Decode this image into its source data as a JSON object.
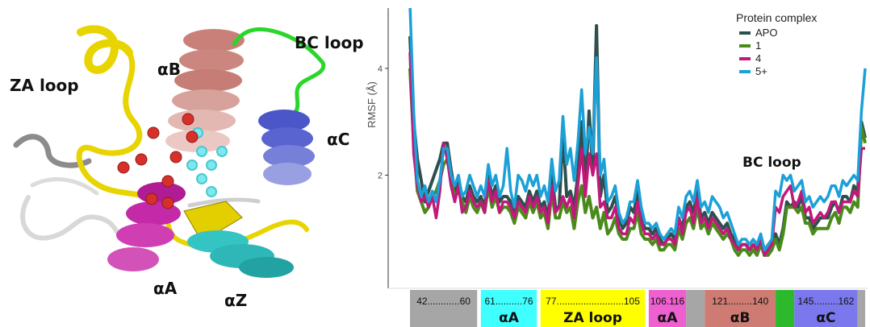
{
  "structure_labels": {
    "za_loop": "ZA loop",
    "alpha_b": "αB",
    "bc_loop": "BC loop",
    "alpha_c": "αC",
    "alpha_a": "αA",
    "alpha_z": "αZ"
  },
  "chart_data": {
    "type": "line",
    "ylabel": "RMSF (Å)",
    "yticks": [
      "2",
      "4"
    ],
    "ylim": [
      0.0,
      5.1
    ],
    "x": [
      42,
      43,
      44,
      45,
      46,
      47,
      48,
      49,
      50,
      51,
      52,
      53,
      54,
      55,
      56,
      57,
      58,
      59,
      60,
      61,
      62,
      63,
      64,
      65,
      66,
      67,
      68,
      69,
      70,
      71,
      72,
      73,
      74,
      75,
      76,
      77,
      78,
      79,
      80,
      81,
      82,
      83,
      84,
      85,
      86,
      87,
      88,
      89,
      90,
      91,
      92,
      93,
      94,
      95,
      96,
      97,
      98,
      99,
      100,
      101,
      102,
      103,
      104,
      105,
      106,
      107,
      108,
      109,
      110,
      111,
      112,
      113,
      114,
      115,
      116,
      117,
      118,
      119,
      120,
      121,
      122,
      123,
      124,
      125,
      126,
      127,
      128,
      129,
      130,
      131,
      132,
      133,
      134,
      135,
      136,
      137,
      138,
      139,
      140,
      141,
      142,
      143,
      144,
      145,
      146,
      147,
      148,
      149,
      150,
      151,
      152,
      153,
      154,
      155,
      156,
      157,
      158,
      159,
      160,
      161,
      162,
      163,
      164
    ],
    "xlim": [
      42,
      164
    ],
    "legend": {
      "title": "Protein complex",
      "position": "top-right"
    },
    "annotation": "BC loop",
    "series": [
      {
        "name": "APO",
        "color": "#2f4f4f",
        "width": 4,
        "values": [
          4.6,
          3.0,
          2.3,
          1.9,
          1.5,
          1.7,
          1.9,
          2.1,
          2.3,
          2.6,
          2.6,
          2.1,
          1.7,
          1.9,
          1.6,
          1.5,
          1.8,
          1.6,
          1.5,
          1.6,
          1.4,
          2.0,
          1.6,
          1.8,
          1.5,
          1.6,
          1.6,
          1.5,
          1.3,
          1.6,
          1.5,
          1.4,
          1.7,
          1.5,
          1.7,
          1.4,
          1.5,
          1.2,
          2.0,
          1.4,
          1.4,
          2.8,
          1.6,
          1.7,
          1.4,
          2.0,
          3.0,
          1.7,
          3.2,
          2.1,
          4.8,
          1.6,
          2.0,
          1.3,
          1.4,
          1.6,
          1.2,
          1.0,
          1.1,
          1.4,
          1.3,
          1.7,
          1.2,
          1.0,
          1.0,
          0.9,
          1.0,
          0.8,
          0.7,
          0.8,
          0.9,
          0.8,
          1.2,
          1.0,
          1.4,
          1.5,
          1.3,
          1.7,
          1.2,
          1.3,
          1.1,
          1.3,
          1.2,
          1.1,
          1.0,
          1.1,
          0.9,
          0.8,
          0.6,
          0.7,
          0.7,
          0.6,
          0.7,
          0.6,
          0.8,
          0.5,
          0.6,
          0.7,
          0.9,
          0.7,
          1.0,
          1.5,
          1.4,
          1.5,
          1.4,
          1.6,
          1.2,
          1.2,
          1.0,
          1.1,
          1.2,
          1.2,
          1.2,
          1.4,
          1.5,
          1.3,
          1.6,
          1.6,
          1.5,
          1.8,
          1.7,
          3.0,
          2.7
        ]
      },
      {
        "name": "1",
        "color": "#4a8a1a",
        "width": 4,
        "values": [
          4.0,
          2.6,
          1.7,
          1.5,
          1.3,
          1.4,
          1.6,
          1.7,
          1.9,
          2.2,
          2.3,
          1.9,
          1.6,
          1.7,
          1.5,
          1.3,
          1.6,
          1.4,
          1.3,
          1.5,
          1.3,
          1.8,
          1.4,
          1.6,
          1.3,
          1.4,
          1.4,
          1.3,
          1.1,
          1.4,
          1.3,
          1.2,
          1.5,
          1.3,
          1.5,
          1.2,
          1.3,
          1.0,
          1.7,
          1.2,
          1.2,
          1.5,
          1.3,
          1.4,
          1.0,
          1.5,
          1.8,
          1.3,
          1.6,
          1.2,
          1.4,
          1.0,
          1.3,
          0.9,
          1.0,
          1.2,
          0.9,
          0.8,
          0.8,
          1.0,
          1.0,
          1.3,
          0.9,
          0.8,
          0.8,
          0.7,
          0.8,
          0.6,
          0.6,
          0.7,
          0.7,
          0.6,
          1.0,
          0.8,
          1.1,
          1.2,
          1.0,
          1.4,
          1.0,
          1.1,
          0.9,
          1.1,
          1.0,
          0.9,
          0.8,
          0.9,
          0.8,
          0.6,
          0.5,
          0.6,
          0.6,
          0.5,
          0.6,
          0.5,
          0.7,
          0.5,
          0.5,
          0.6,
          0.8,
          0.6,
          0.9,
          1.4,
          1.4,
          1.4,
          1.3,
          1.4,
          1.1,
          1.1,
          0.9,
          1.0,
          1.0,
          1.0,
          1.0,
          1.2,
          1.3,
          1.1,
          1.4,
          1.4,
          1.3,
          1.5,
          1.4,
          2.9,
          2.6
        ]
      },
      {
        "name": "4",
        "color": "#c2187a",
        "width": 3.5,
        "values": [
          4.3,
          2.4,
          1.8,
          1.5,
          1.6,
          1.4,
          1.6,
          1.2,
          1.7,
          2.6,
          2.3,
          1.8,
          1.5,
          1.8,
          1.3,
          1.4,
          1.7,
          1.5,
          1.4,
          1.5,
          1.3,
          1.9,
          1.5,
          1.7,
          1.3,
          1.5,
          1.5,
          1.4,
          1.2,
          1.5,
          1.4,
          1.3,
          1.6,
          1.4,
          1.6,
          1.3,
          1.4,
          1.1,
          1.8,
          1.3,
          1.4,
          1.6,
          1.4,
          1.6,
          1.2,
          1.8,
          2.5,
          1.6,
          2.4,
          2.0,
          2.4,
          1.4,
          1.5,
          1.2,
          1.2,
          1.4,
          1.0,
          0.9,
          0.9,
          1.2,
          1.1,
          1.5,
          1.1,
          0.9,
          0.9,
          0.8,
          0.9,
          0.7,
          0.7,
          0.8,
          0.8,
          0.7,
          1.2,
          0.9,
          1.3,
          1.4,
          1.1,
          1.6,
          1.1,
          1.2,
          1.0,
          1.2,
          1.1,
          1.0,
          0.9,
          1.0,
          0.8,
          0.7,
          0.6,
          0.7,
          0.7,
          0.6,
          0.7,
          0.6,
          0.8,
          0.5,
          0.6,
          0.7,
          1.4,
          1.3,
          1.6,
          1.7,
          1.8,
          1.4,
          1.5,
          1.7,
          1.3,
          1.4,
          1.1,
          1.2,
          1.3,
          1.2,
          1.3,
          1.5,
          1.5,
          1.3,
          1.5,
          1.5,
          1.5,
          1.7,
          1.6,
          2.5,
          2.5
        ]
      },
      {
        "name": "5+",
        "color": "#1ba0d8",
        "width": 3.5,
        "values": [
          5.2,
          3.2,
          1.9,
          1.6,
          1.8,
          1.5,
          1.7,
          1.5,
          1.9,
          2.5,
          2.5,
          2.0,
          1.8,
          2.0,
          1.6,
          1.7,
          2.0,
          1.8,
          1.6,
          1.8,
          1.6,
          2.2,
          1.8,
          2.0,
          1.6,
          1.8,
          2.5,
          1.7,
          1.4,
          2.0,
          1.9,
          1.7,
          2.0,
          1.8,
          2.0,
          1.6,
          1.8,
          1.5,
          2.3,
          1.7,
          1.9,
          3.1,
          2.2,
          2.5,
          1.9,
          2.6,
          3.6,
          2.4,
          2.9,
          2.4,
          4.2,
          2.0,
          2.3,
          1.5,
          1.6,
          1.8,
          1.3,
          1.1,
          1.2,
          1.5,
          1.5,
          1.9,
          1.4,
          1.1,
          1.1,
          1.0,
          1.1,
          0.9,
          0.8,
          0.9,
          1.0,
          0.9,
          1.4,
          1.2,
          1.6,
          1.7,
          1.5,
          1.9,
          1.4,
          1.5,
          1.3,
          1.6,
          1.5,
          1.4,
          1.2,
          1.3,
          1.1,
          0.9,
          0.7,
          0.8,
          0.8,
          0.7,
          0.8,
          0.7,
          0.9,
          0.6,
          0.7,
          0.8,
          1.7,
          1.6,
          2.0,
          1.9,
          2.0,
          1.7,
          1.8,
          1.9,
          1.5,
          1.6,
          1.4,
          1.5,
          1.6,
          1.5,
          1.6,
          1.8,
          1.8,
          1.6,
          1.9,
          1.8,
          1.9,
          2.0,
          1.9,
          3.2,
          4.0
        ]
      }
    ],
    "regions": [
      {
        "range_label": "42............60",
        "name": "",
        "start": 42,
        "end": 60,
        "color": "#a6a6a6"
      },
      {
        "range_label": "61..........76",
        "name": "αA",
        "start": 61,
        "end": 76,
        "color": "#40ffff"
      },
      {
        "range_label": "77.........................105",
        "name": "ZA loop",
        "start": 77,
        "end": 105,
        "color": "#ffff00"
      },
      {
        "range_label": "106.116",
        "name": "αA",
        "start": 106,
        "end": 116,
        "color": "#ee5fcf"
      },
      {
        "range_label": "",
        "name": "",
        "start": 116,
        "end": 121,
        "color": "#a6a6a6"
      },
      {
        "range_label": "121.........140",
        "name": "αB",
        "start": 121,
        "end": 140,
        "color": "#cd7b73"
      },
      {
        "range_label": "",
        "name": "",
        "start": 140,
        "end": 145,
        "color": "#2cba2c"
      },
      {
        "range_label": "145.........162",
        "name": "αC",
        "start": 145,
        "end": 162,
        "color": "#7a78ec"
      },
      {
        "range_label": "",
        "name": "",
        "start": 162,
        "end": 164,
        "color": "#a6a6a6"
      }
    ]
  }
}
